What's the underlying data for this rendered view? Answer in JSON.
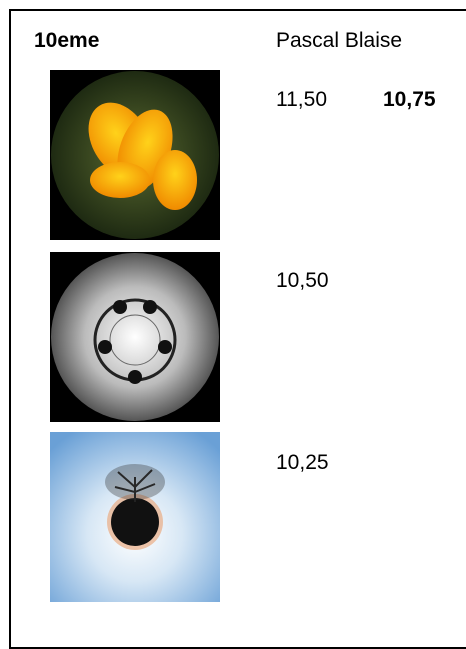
{
  "header": {
    "title": "10eme",
    "name": "Pascal Blaise"
  },
  "rows": [
    [
      "11,50",
      "10,75"
    ],
    [
      "10,50"
    ],
    [
      "10,25"
    ]
  ]
}
